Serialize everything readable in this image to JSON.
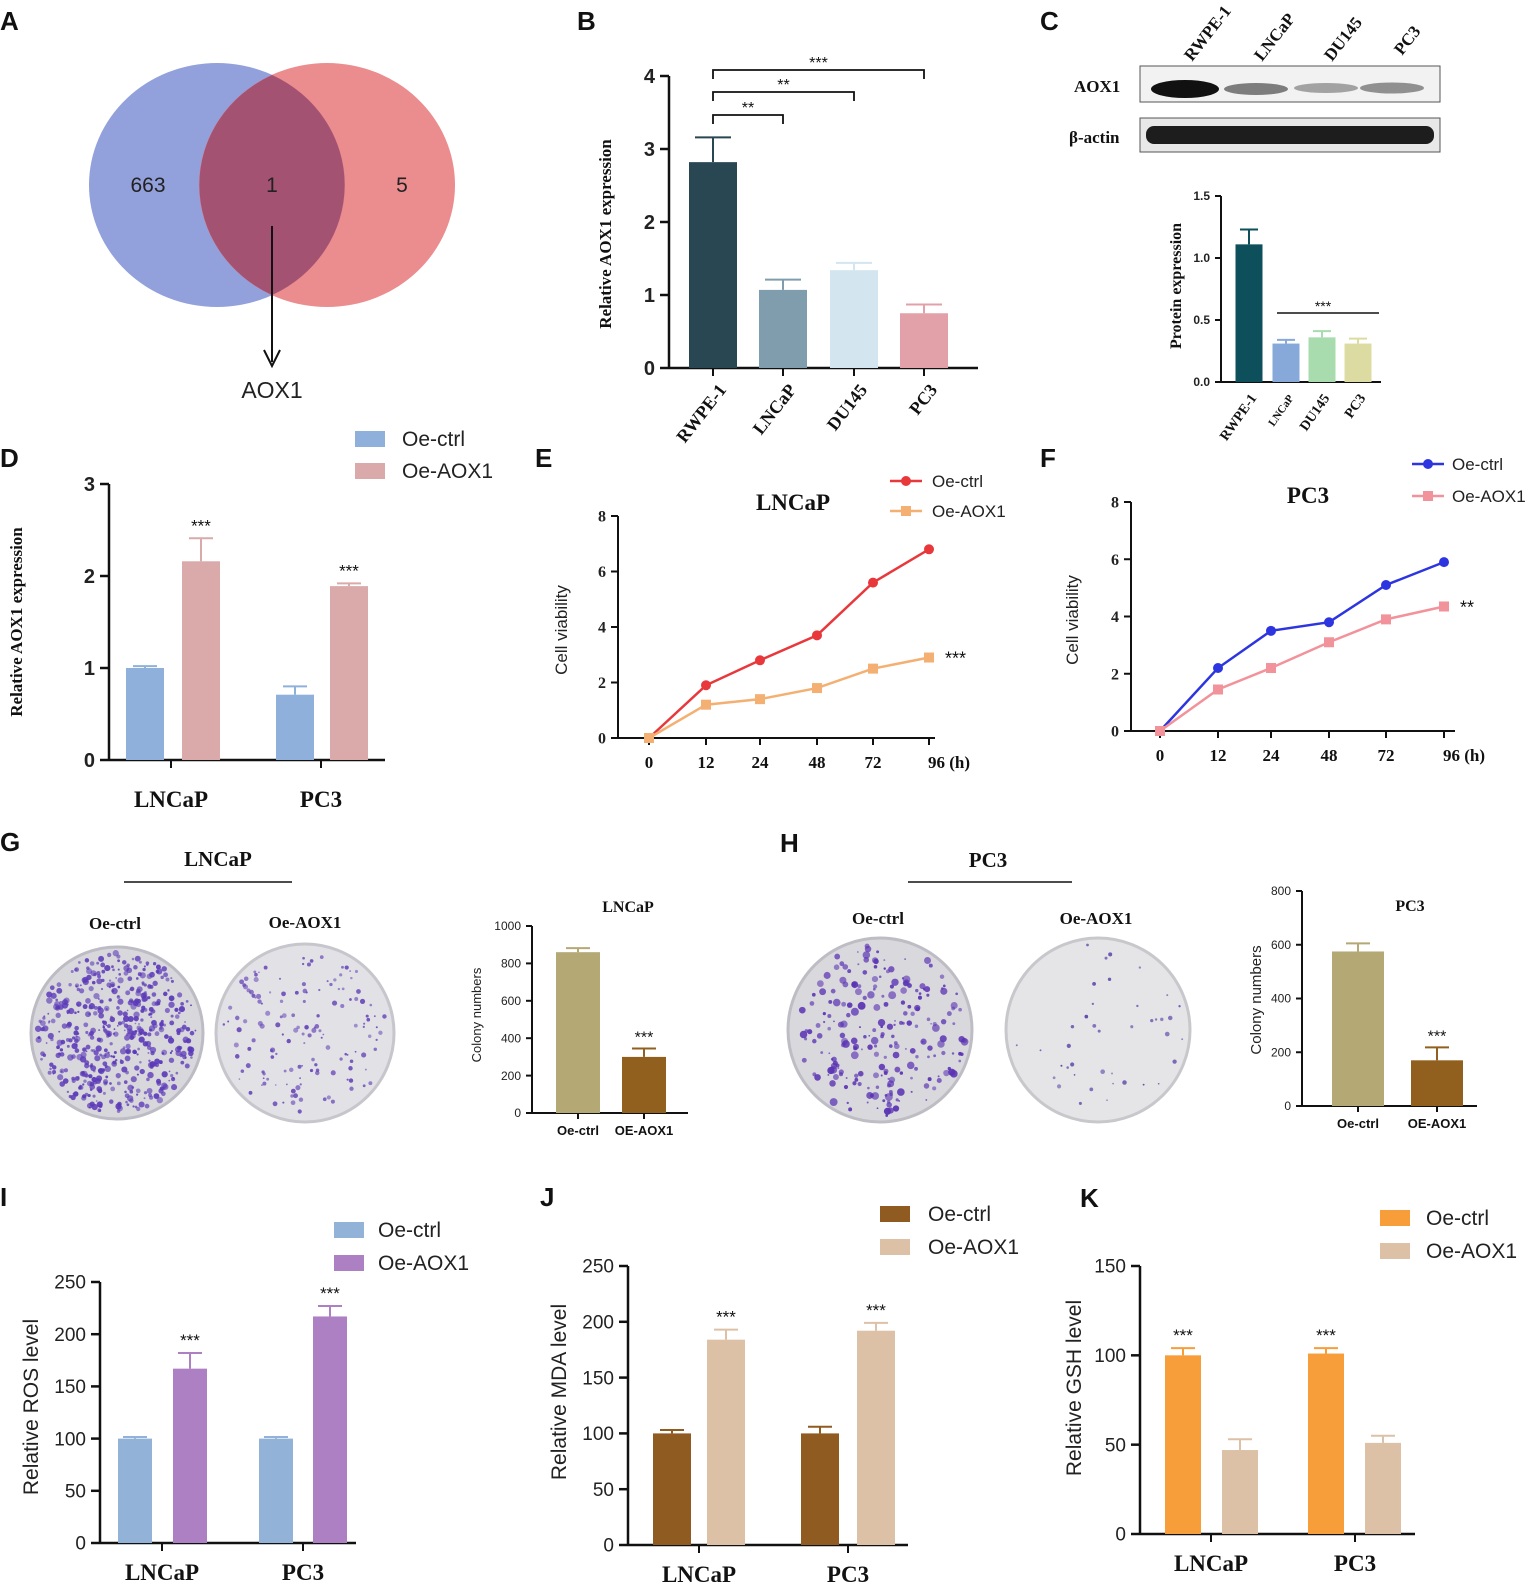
{
  "panels": {
    "A": {
      "label": "A",
      "set1_count": "663",
      "overlap_count": "1",
      "set2_count": "5",
      "result": "AOX1",
      "colors": {
        "set1": "#7f8fd6",
        "set2": "#e7787a",
        "overlap": "#a45272"
      }
    },
    "B": {
      "label": "B",
      "chart_data": {
        "type": "bar",
        "categories": [
          "RWPE-1",
          "LNCaP",
          "DU145",
          "PC3"
        ],
        "values": [
          2.82,
          1.07,
          1.34,
          0.75
        ],
        "errors": [
          0.34,
          0.14,
          0.1,
          0.12
        ],
        "colors": [
          "#294752",
          "#7f9dad",
          "#d3e5ee",
          "#e2a1a9"
        ],
        "ylabel": "Relative AOX1 expression",
        "ylim": [
          0,
          4
        ],
        "yticks": [
          "0",
          "1",
          "2",
          "3",
          "4"
        ],
        "significance": [
          {
            "from": 0,
            "to": 1,
            "mark": "**"
          },
          {
            "from": 0,
            "to": 2,
            "mark": "**"
          },
          {
            "from": 0,
            "to": 3,
            "mark": "***"
          }
        ]
      }
    },
    "C": {
      "label": "C",
      "blot_lanes": [
        "RWPE-1",
        "LNCaP",
        "DU145",
        "PC3"
      ],
      "blot_rows": [
        "AOX1",
        "β-actin"
      ],
      "chart_data": {
        "type": "bar",
        "categories": [
          "RWPE-1",
          "LNCaP",
          "DU145",
          "PC3"
        ],
        "values": [
          1.11,
          0.31,
          0.36,
          0.31
        ],
        "errors": [
          0.12,
          0.03,
          0.05,
          0.04
        ],
        "colors": [
          "#0e4f5c",
          "#86a9da",
          "#a8dcae",
          "#dcdca2"
        ],
        "ylabel": "Protein expression",
        "ylim": [
          0,
          1.5
        ],
        "yticks": [
          "0.0",
          "0.5",
          "1.0",
          "1.5"
        ],
        "significance_mark": "***"
      }
    },
    "D": {
      "label": "D",
      "chart_data": {
        "type": "bar",
        "categories": [
          "LNCaP",
          "PC3"
        ],
        "series": [
          {
            "name": "Oe-ctrl",
            "values": [
              1.0,
              0.71
            ],
            "errors": [
              0.02,
              0.09
            ],
            "color": "#8fb0db"
          },
          {
            "name": "Oe-AOX1",
            "values": [
              2.16,
              1.89
            ],
            "errors": [
              0.25,
              0.03
            ],
            "color": "#d9aaa9"
          }
        ],
        "ylabel": "Relative AOX1 expression",
        "ylim": [
          0,
          3
        ],
        "yticks": [
          "0",
          "1",
          "2",
          "3"
        ],
        "marks": [
          "***",
          "***"
        ]
      }
    },
    "E": {
      "label": "E",
      "chart_data": {
        "type": "line",
        "title": "LNCaP",
        "x": [
          "0",
          "12",
          "24",
          "48",
          "72",
          "96 (h)"
        ],
        "series": [
          {
            "name": "Oe-ctrl",
            "values": [
              0,
              1.9,
              2.8,
              3.7,
              5.6,
              6.8
            ],
            "color": "#e8383b",
            "marker": "circle"
          },
          {
            "name": "Oe-AOX1",
            "values": [
              0,
              1.2,
              1.4,
              1.8,
              2.5,
              2.9
            ],
            "color": "#f4b073",
            "marker": "square"
          }
        ],
        "ylabel": "Cell viability",
        "ylim": [
          0,
          8
        ],
        "yticks": [
          "0",
          "2",
          "4",
          "6",
          "8"
        ],
        "mark": "***"
      }
    },
    "F": {
      "label": "F",
      "chart_data": {
        "type": "line",
        "title": "PC3",
        "x": [
          "0",
          "12",
          "24",
          "48",
          "72",
          "96 (h)"
        ],
        "series": [
          {
            "name": "Oe-ctrl",
            "values": [
              0,
              2.2,
              3.5,
              3.8,
              5.1,
              5.9
            ],
            "color": "#2d35e0",
            "marker": "circle"
          },
          {
            "name": "Oe-AOX1",
            "values": [
              0,
              1.45,
              2.2,
              3.1,
              3.9,
              4.35
            ],
            "color": "#f2929a",
            "marker": "square"
          }
        ],
        "ylabel": "Cell viability",
        "ylim": [
          0,
          8
        ],
        "yticks": [
          "0",
          "2",
          "4",
          "6",
          "8"
        ],
        "mark": "**"
      }
    },
    "G": {
      "label": "G",
      "header": "LNCaP",
      "dish_labels": [
        "Oe-ctrl",
        "Oe-AOX1"
      ],
      "chart_data": {
        "type": "bar",
        "title": "LNCaP",
        "categories": [
          "Oe-ctrl",
          "OE-AOX1"
        ],
        "values": [
          860,
          300
        ],
        "errors": [
          22,
          45
        ],
        "colors": [
          "#b4a975",
          "#92601e"
        ],
        "ylabel": "Colony numbers",
        "ylim": [
          0,
          1000
        ],
        "yticks": [
          "0",
          "200",
          "400",
          "600",
          "800",
          "1000"
        ],
        "mark": "***"
      }
    },
    "H": {
      "label": "H",
      "header": "PC3",
      "dish_labels": [
        "Oe-ctrl",
        "Oe-AOX1"
      ],
      "chart_data": {
        "type": "bar",
        "title": "PC3",
        "categories": [
          "Oe-ctrl",
          "OE-AOX1"
        ],
        "values": [
          575,
          170
        ],
        "errors": [
          30,
          48
        ],
        "colors": [
          "#b4a975",
          "#92601e"
        ],
        "ylabel": "Colony numbers",
        "ylim": [
          0,
          800
        ],
        "yticks": [
          "0",
          "200",
          "400",
          "600",
          "800"
        ],
        "mark": "***"
      }
    },
    "I": {
      "label": "I",
      "chart_data": {
        "type": "bar",
        "categories": [
          "LNCaP",
          "PC3"
        ],
        "series": [
          {
            "name": "Oe-ctrl",
            "values": [
              100,
              100
            ],
            "errors": [
              1.5,
              1.5
            ],
            "color": "#92b2d8"
          },
          {
            "name": "Oe-AOX1",
            "values": [
              167,
              217
            ],
            "errors": [
              15,
              10
            ],
            "color": "#ad80c4"
          }
        ],
        "ylabel": "Relative ROS level",
        "ylim": [
          0,
          250
        ],
        "yticks": [
          "0",
          "50",
          "100",
          "150",
          "200",
          "250"
        ],
        "marks": [
          "***",
          "***"
        ]
      }
    },
    "J": {
      "label": "J",
      "chart_data": {
        "type": "bar",
        "categories": [
          "LNCaP",
          "PC3"
        ],
        "series": [
          {
            "name": "Oe-ctrl",
            "values": [
              100,
              100
            ],
            "errors": [
              3,
              6
            ],
            "color": "#8f5b21"
          },
          {
            "name": "Oe-AOX1",
            "values": [
              184,
              192
            ],
            "errors": [
              9,
              7
            ],
            "color": "#dcc1a6"
          }
        ],
        "ylabel": "Relative MDA level",
        "ylim": [
          0,
          250
        ],
        "yticks": [
          "0",
          "50",
          "100",
          "150",
          "200",
          "250"
        ],
        "marks": [
          "***",
          "***"
        ]
      }
    },
    "K": {
      "label": "K",
      "chart_data": {
        "type": "bar",
        "categories": [
          "LNCaP",
          "PC3"
        ],
        "series": [
          {
            "name": "Oe-ctrl",
            "values": [
              100,
              101
            ],
            "errors": [
              4,
              3
            ],
            "color": "#f79e3a"
          },
          {
            "name": "Oe-AOX1",
            "values": [
              47,
              51
            ],
            "errors": [
              6,
              4
            ],
            "color": "#dcc1a6"
          }
        ],
        "ylabel": "Relative GSH level",
        "ylim": [
          0,
          150
        ],
        "yticks": [
          "0",
          "50",
          "100",
          "150"
        ],
        "marks": [
          "***",
          "***"
        ]
      }
    }
  }
}
